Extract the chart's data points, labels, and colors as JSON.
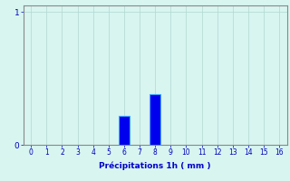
{
  "bar_positions": [
    6,
    8
  ],
  "bar_values": [
    0.22,
    0.38
  ],
  "bar_color": "#0000ee",
  "bar_edge_color": "#44aaff",
  "background_color": "#d8f5f0",
  "grid_color": "#b0d8d0",
  "axis_color": "#0000bb",
  "xlabel": "Précipitations 1h ( mm )",
  "xlabel_color": "#0000cc",
  "xlim": [
    -0.5,
    16.5
  ],
  "ylim": [
    0,
    1.05
  ],
  "yticks": [
    0,
    1
  ],
  "xticks": [
    0,
    1,
    2,
    3,
    4,
    5,
    6,
    7,
    8,
    9,
    10,
    11,
    12,
    13,
    14,
    15,
    16
  ],
  "xtick_labels": [
    "0",
    "1",
    "2",
    "3",
    "4",
    "5",
    "6",
    "7",
    "8",
    "9",
    "10",
    "11",
    "12",
    "13",
    "14",
    "15",
    "16"
  ],
  "figsize": [
    3.2,
    2.0
  ],
  "dpi": 100,
  "spine_color": "#888888"
}
